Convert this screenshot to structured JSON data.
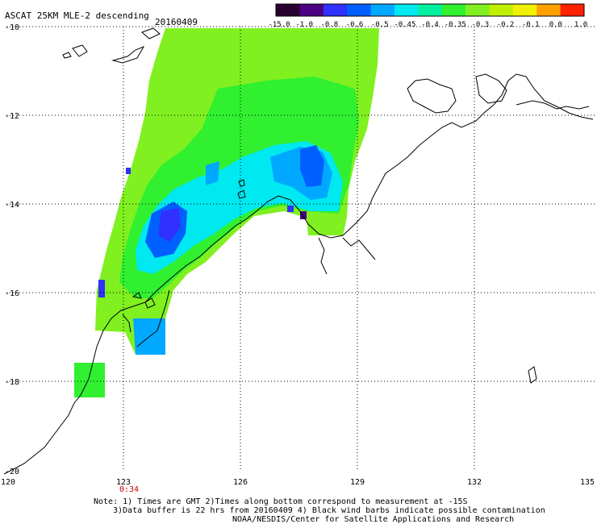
{
  "header": {
    "title": "ASCAT 25KM MLE-2 descending",
    "date": "20160409"
  },
  "colorbar": {
    "labels": [
      "-15.0",
      "-1.0",
      "-0.8",
      "-0.6",
      "-0.5",
      "-0.45",
      "-0.4",
      "-0.35",
      "-0.3",
      "-0.2",
      "-0.1",
      "0.0",
      "1.0"
    ],
    "colors": [
      "#2a0030",
      "#4b0082",
      "#3030ff",
      "#0060ff",
      "#00a8ff",
      "#00e8f0",
      "#00f0a0",
      "#30f030",
      "#80f020",
      "#c0f000",
      "#f0f000",
      "#ffa000",
      "#ff2000"
    ]
  },
  "axes": {
    "lat_labels": [
      "-10",
      "-12",
      "-14",
      "-16",
      "-18",
      "-20"
    ],
    "lon_labels": [
      "120",
      "123",
      "126",
      "129",
      "132",
      "135"
    ],
    "time_label": "0:34"
  },
  "footer": {
    "line1": "Note: 1) Times are GMT 2)Times along bottom correspond to measurement at -15S",
    "line2": "3)Data buffer is 22 hrs from 20160409 4) Black wind barbs indicate possible contamination",
    "line3": "NOAA/NESDIS/Center for Satellite Applications and Research"
  }
}
